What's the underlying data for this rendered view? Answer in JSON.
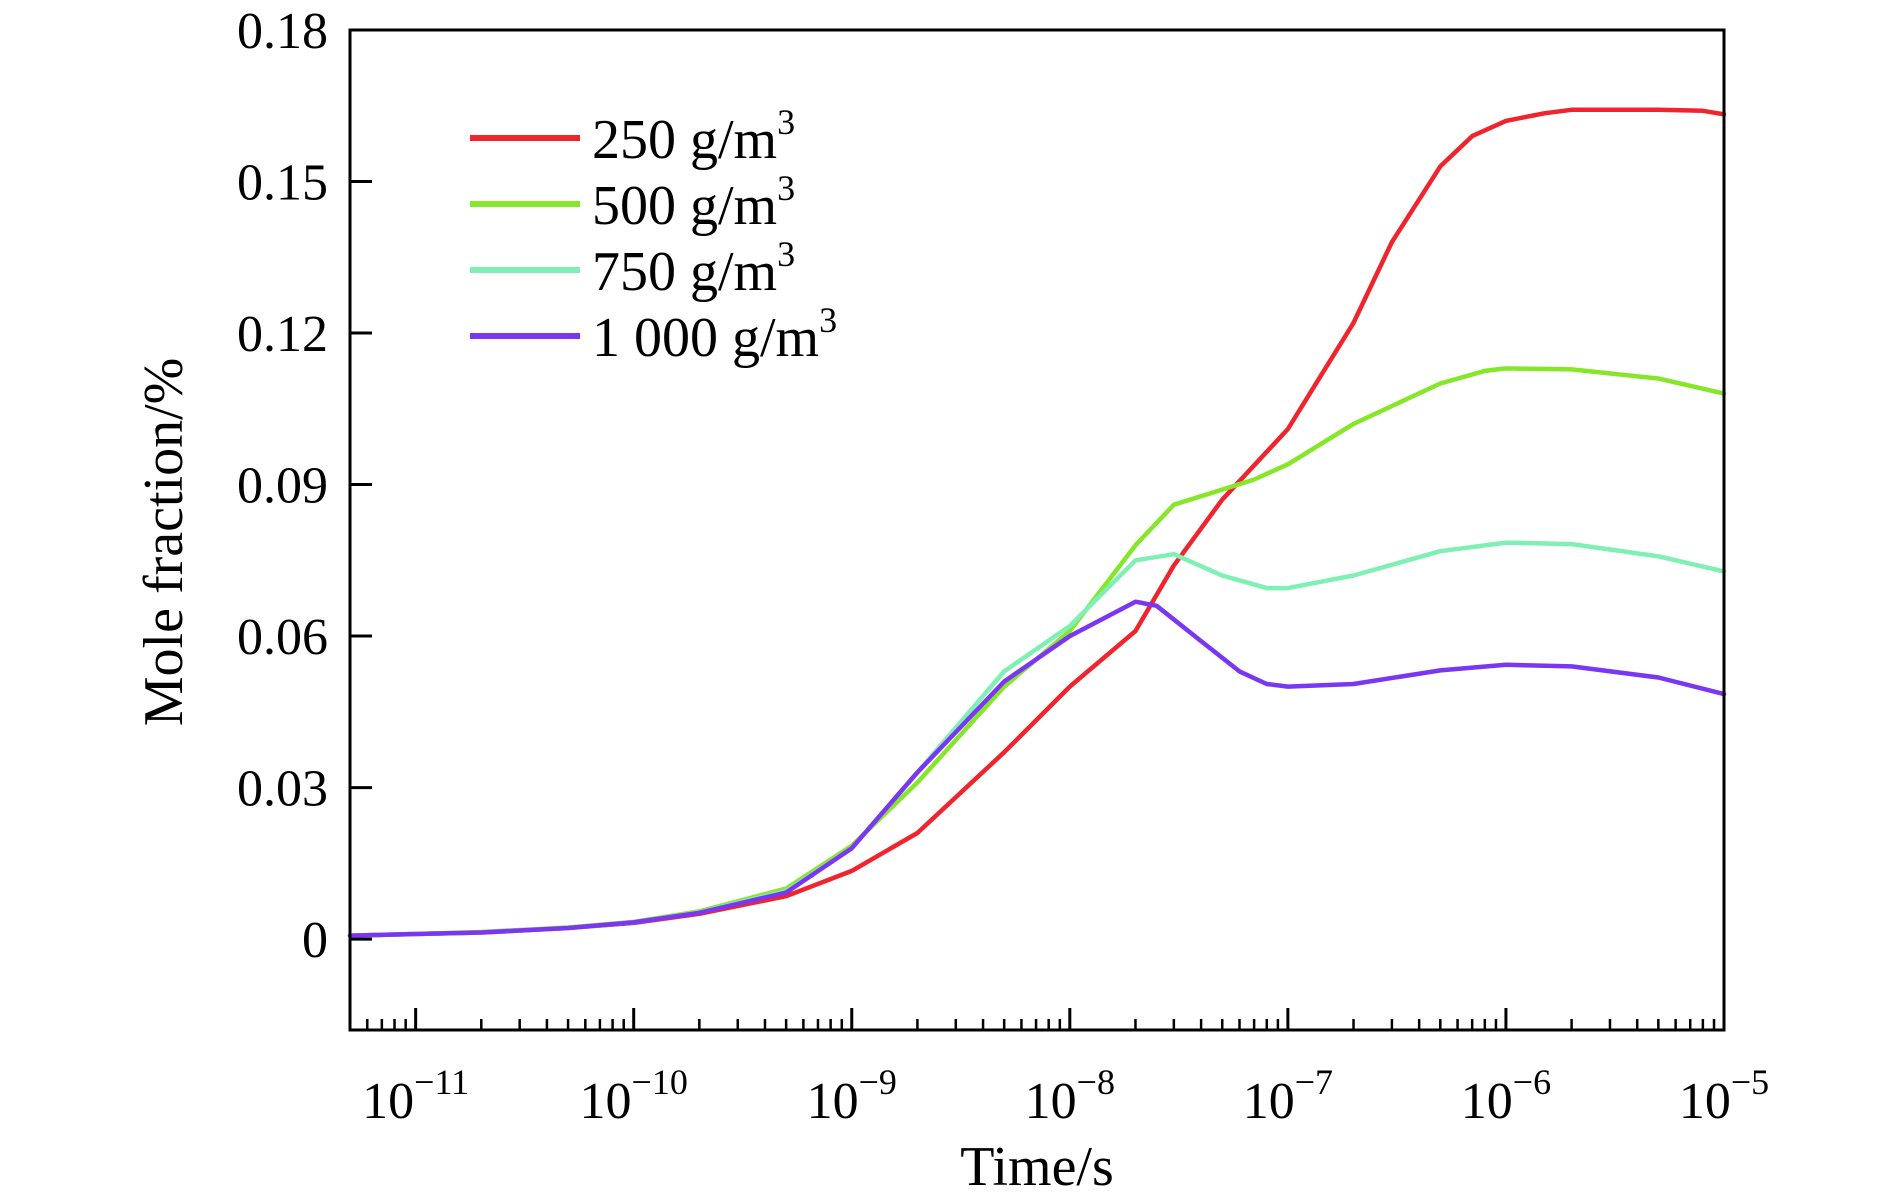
{
  "chart_data": {
    "type": "line",
    "xlabel": "Time/s",
    "ylabel": "Mole fraction/%",
    "xscale": "log",
    "xlim": [
      5e-12,
      1e-05
    ],
    "ylim": [
      -0.018,
      0.18
    ],
    "yticks": [
      0,
      0.03,
      0.06,
      0.09,
      0.12,
      0.15,
      0.18
    ],
    "ytick_labels": [
      "0",
      "0.03",
      "0.06",
      "0.09",
      "0.12",
      "0.15",
      "0.18"
    ],
    "xticks": [
      1e-11,
      1e-10,
      1e-09,
      1e-08,
      1e-07,
      1e-06,
      1e-05
    ],
    "xtick_labels": [
      {
        "base": "10",
        "exp": "−11"
      },
      {
        "base": "10",
        "exp": "−10"
      },
      {
        "base": "10",
        "exp": "−9"
      },
      {
        "base": "10",
        "exp": "−8"
      },
      {
        "base": "10",
        "exp": "−7"
      },
      {
        "base": "10",
        "exp": "−6"
      },
      {
        "base": "10",
        "exp": "−5"
      }
    ],
    "grid": false,
    "legend_position": "top-left",
    "series": [
      {
        "name": "250 g/m3",
        "label_main": "250 g/m",
        "label_sup": "3",
        "color": "#f0242c",
        "points": [
          [
            5e-12,
            0.0007
          ],
          [
            1e-11,
            0.001
          ],
          [
            2e-11,
            0.0013
          ],
          [
            5e-11,
            0.0022
          ],
          [
            1e-10,
            0.0032
          ],
          [
            2e-10,
            0.005
          ],
          [
            5e-10,
            0.0085
          ],
          [
            1e-09,
            0.0135
          ],
          [
            2e-09,
            0.021
          ],
          [
            5e-09,
            0.037
          ],
          [
            1e-08,
            0.05
          ],
          [
            2e-08,
            0.061
          ],
          [
            3e-08,
            0.074
          ],
          [
            5e-08,
            0.087
          ],
          [
            1e-07,
            0.101
          ],
          [
            2e-07,
            0.122
          ],
          [
            3e-07,
            0.138
          ],
          [
            5e-07,
            0.153
          ],
          [
            7e-07,
            0.159
          ],
          [
            1e-06,
            0.162
          ],
          [
            1.5e-06,
            0.1635
          ],
          [
            2e-06,
            0.1642
          ],
          [
            5e-06,
            0.1642
          ],
          [
            8e-06,
            0.164
          ],
          [
            1e-05,
            0.1633
          ]
        ]
      },
      {
        "name": "500 g/m3",
        "label_main": "500 g/m",
        "label_sup": "3",
        "color": "#86e62a",
        "points": [
          [
            5e-12,
            0.0007
          ],
          [
            1e-11,
            0.001
          ],
          [
            2e-11,
            0.0014
          ],
          [
            5e-11,
            0.0023
          ],
          [
            1e-10,
            0.0034
          ],
          [
            2e-10,
            0.0055
          ],
          [
            5e-10,
            0.01
          ],
          [
            1e-09,
            0.0185
          ],
          [
            2e-09,
            0.031
          ],
          [
            5e-09,
            0.05
          ],
          [
            1e-08,
            0.061
          ],
          [
            2e-08,
            0.078
          ],
          [
            3e-08,
            0.086
          ],
          [
            5e-08,
            0.089
          ],
          [
            7e-08,
            0.091
          ],
          [
            1e-07,
            0.094
          ],
          [
            2e-07,
            0.102
          ],
          [
            5e-07,
            0.11
          ],
          [
            8e-07,
            0.1125
          ],
          [
            1e-06,
            0.113
          ],
          [
            2e-06,
            0.1128
          ],
          [
            5e-06,
            0.111
          ],
          [
            1e-05,
            0.108
          ]
        ]
      },
      {
        "name": "750 g/m3",
        "label_main": "750 g/m",
        "label_sup": "3",
        "color": "#7ff0b4",
        "points": [
          [
            5e-12,
            0.0007
          ],
          [
            1e-11,
            0.001
          ],
          [
            2e-11,
            0.0013
          ],
          [
            5e-11,
            0.0022
          ],
          [
            1e-10,
            0.0033
          ],
          [
            2e-10,
            0.0053
          ],
          [
            5e-10,
            0.0095
          ],
          [
            1e-09,
            0.018
          ],
          [
            2e-09,
            0.033
          ],
          [
            5e-09,
            0.053
          ],
          [
            1e-08,
            0.062
          ],
          [
            2e-08,
            0.075
          ],
          [
            3e-08,
            0.0762
          ],
          [
            5e-08,
            0.072
          ],
          [
            8e-08,
            0.0695
          ],
          [
            1e-07,
            0.0695
          ],
          [
            2e-07,
            0.072
          ],
          [
            5e-07,
            0.0768
          ],
          [
            1e-06,
            0.0785
          ],
          [
            2e-06,
            0.0782
          ],
          [
            5e-06,
            0.0758
          ],
          [
            1e-05,
            0.0728
          ]
        ]
      },
      {
        "name": "1 000 g/m3",
        "label_main": "1 000 g/m",
        "label_sup": "3",
        "color": "#7a36f2",
        "points": [
          [
            5e-12,
            0.0007
          ],
          [
            1e-11,
            0.001
          ],
          [
            2e-11,
            0.0013
          ],
          [
            5e-11,
            0.0022
          ],
          [
            1e-10,
            0.0033
          ],
          [
            2e-10,
            0.0052
          ],
          [
            5e-10,
            0.0092
          ],
          [
            1e-09,
            0.018
          ],
          [
            2e-09,
            0.033
          ],
          [
            5e-09,
            0.051
          ],
          [
            1e-08,
            0.06
          ],
          [
            2e-08,
            0.0668
          ],
          [
            2.5e-08,
            0.066
          ],
          [
            4e-08,
            0.059
          ],
          [
            6e-08,
            0.053
          ],
          [
            8e-08,
            0.0505
          ],
          [
            1e-07,
            0.05
          ],
          [
            2e-07,
            0.0505
          ],
          [
            5e-07,
            0.0532
          ],
          [
            1e-06,
            0.0543
          ],
          [
            2e-06,
            0.054
          ],
          [
            5e-06,
            0.0518
          ],
          [
            1e-05,
            0.0485
          ]
        ]
      }
    ]
  }
}
